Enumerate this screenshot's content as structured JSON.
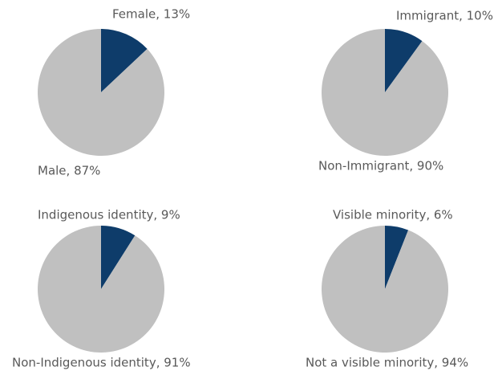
{
  "chart_data": [
    {
      "type": "pie",
      "values": [
        13,
        87
      ],
      "value_labels": [
        "Female, 13%",
        "Male, 87%"
      ],
      "colors": [
        "#0e3c6a",
        "#c0c0c0"
      ]
    },
    {
      "type": "pie",
      "values": [
        10,
        90
      ],
      "value_labels": [
        "Immigrant, 10%",
        "Non-Immigrant, 90%"
      ],
      "colors": [
        "#0e3c6a",
        "#c0c0c0"
      ]
    },
    {
      "type": "pie",
      "values": [
        9,
        91
      ],
      "value_labels": [
        "Indigenous identity, 9%",
        "Non-Indigenous identity, 91%"
      ],
      "colors": [
        "#0e3c6a",
        "#c0c0c0"
      ]
    },
    {
      "type": "pie",
      "values": [
        6,
        94
      ],
      "value_labels": [
        "Visible minority, 6%",
        "Not a visible minority, 94%"
      ],
      "colors": [
        "#0e3c6a",
        "#c0c0c0"
      ]
    }
  ]
}
